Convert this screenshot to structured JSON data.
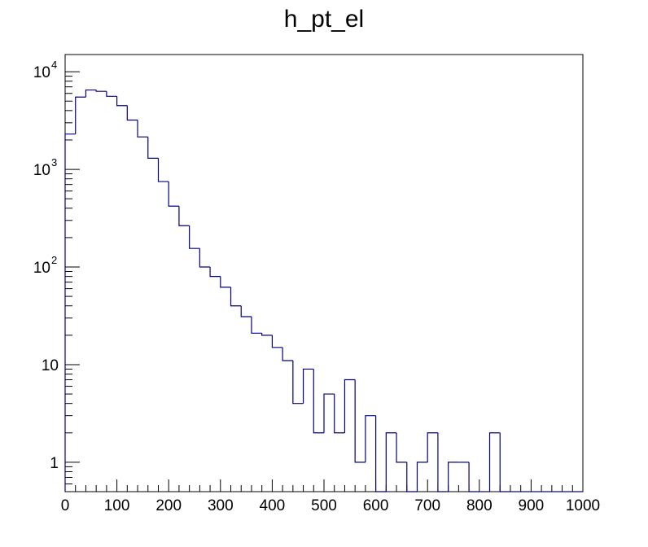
{
  "chart_data": {
    "type": "histogram",
    "title": "h_pt_el",
    "xlabel": "",
    "ylabel": "",
    "xlim": [
      0,
      1000
    ],
    "ylim": [
      0.5,
      15000
    ],
    "yscale": "log",
    "grid": false,
    "line_color": "#000080",
    "bin_width": 20,
    "bin_edges_start": 0,
    "values": [
      2300,
      5500,
      6500,
      6300,
      5600,
      4500,
      3200,
      2150,
      1300,
      750,
      420,
      265,
      155,
      100,
      80,
      62,
      40,
      31,
      21,
      20,
      15,
      11,
      4,
      9,
      2,
      5,
      2,
      7,
      1,
      3,
      0,
      2,
      1,
      0,
      1,
      2,
      0,
      1,
      1,
      0,
      0,
      2,
      0,
      0,
      0,
      0,
      0,
      0,
      0,
      0
    ],
    "x_tick_labels": [
      "0",
      "100",
      "200",
      "300",
      "400",
      "500",
      "600",
      "700",
      "800",
      "900",
      "1000"
    ],
    "y_tick_labels": [
      {
        "value": 1,
        "base": "1",
        "exp": ""
      },
      {
        "value": 10,
        "base": "10",
        "exp": ""
      },
      {
        "value": 100,
        "base": "10",
        "exp": "2"
      },
      {
        "value": 1000,
        "base": "10",
        "exp": "3"
      },
      {
        "value": 10000,
        "base": "10",
        "exp": "4"
      }
    ]
  }
}
